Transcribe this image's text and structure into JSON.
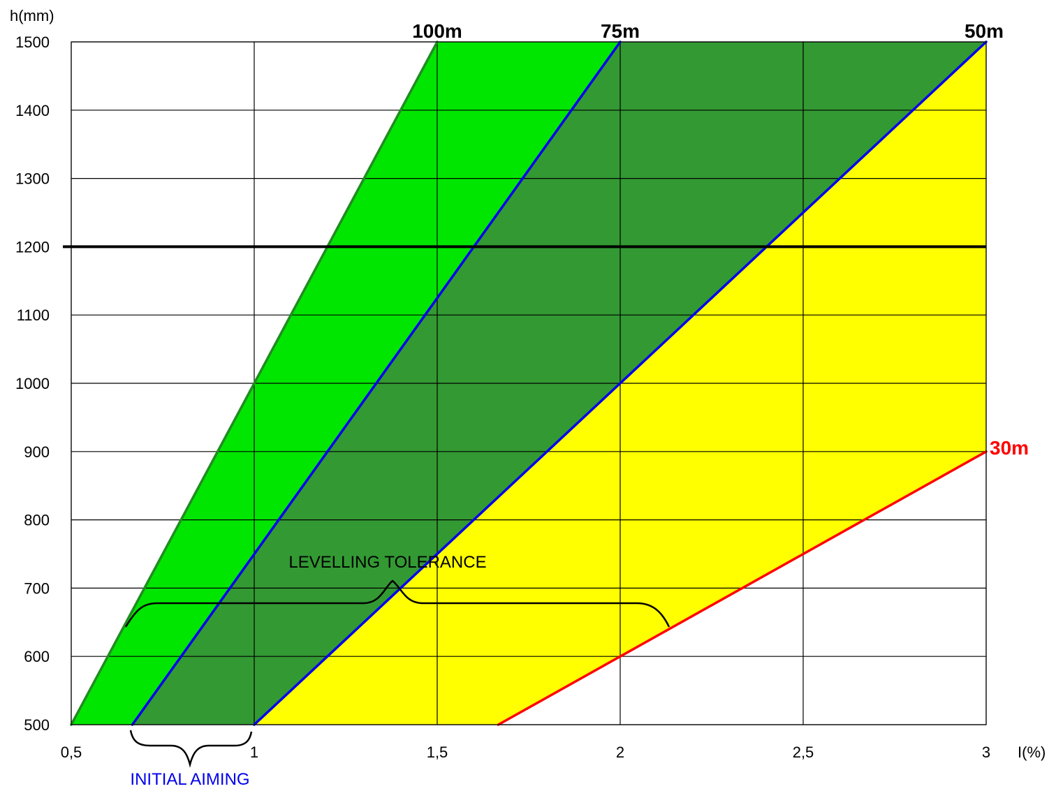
{
  "chart_data": {
    "type": "line",
    "ylabel": "h(mm)",
    "xlabel": "I(%)",
    "xlim": [
      0.5,
      3
    ],
    "ylim": [
      500,
      1500
    ],
    "x_ticks": [
      0.5,
      1,
      1.5,
      2,
      2.5,
      3
    ],
    "x_tick_labels": [
      "0,5",
      "1",
      "1,5",
      "2",
      "2,5",
      "3"
    ],
    "y_ticks": [
      500,
      600,
      700,
      800,
      900,
      1000,
      1100,
      1200,
      1300,
      1400,
      1500
    ],
    "y_tick_labels": [
      "500",
      "600",
      "700",
      "800",
      "900",
      "1000",
      "1100",
      "1200",
      "1300",
      "1400",
      "1500"
    ],
    "grid": true,
    "series": [
      {
        "name": "100m",
        "color": "#228B22",
        "points": [
          [
            0.5,
            500
          ],
          [
            1.5,
            1500
          ]
        ]
      },
      {
        "name": "75m",
        "color": "#0000EE",
        "points": [
          [
            0.667,
            500
          ],
          [
            2.0,
            1500
          ]
        ]
      },
      {
        "name": "50m",
        "color": "#0000EE",
        "points": [
          [
            1.0,
            500
          ],
          [
            3.0,
            1500
          ]
        ]
      },
      {
        "name": "30m",
        "color": "#FF0000",
        "points": [
          [
            1.667,
            500
          ],
          [
            3.0,
            900
          ]
        ]
      }
    ],
    "reference_line": {
      "y": 1200,
      "color": "#000000"
    },
    "regions": [
      {
        "between": [
          "100m",
          "75m"
        ],
        "color": "#00E600"
      },
      {
        "between": [
          "75m",
          "50m"
        ],
        "color": "#339933"
      },
      {
        "between": [
          "50m",
          "30m"
        ],
        "color": "#FFFF00"
      }
    ],
    "annotations": [
      {
        "text": "LEVELLING TOLERANCE",
        "color": "#000000"
      },
      {
        "text": "INITIAL AIMING",
        "color": "#0000EE"
      }
    ]
  }
}
